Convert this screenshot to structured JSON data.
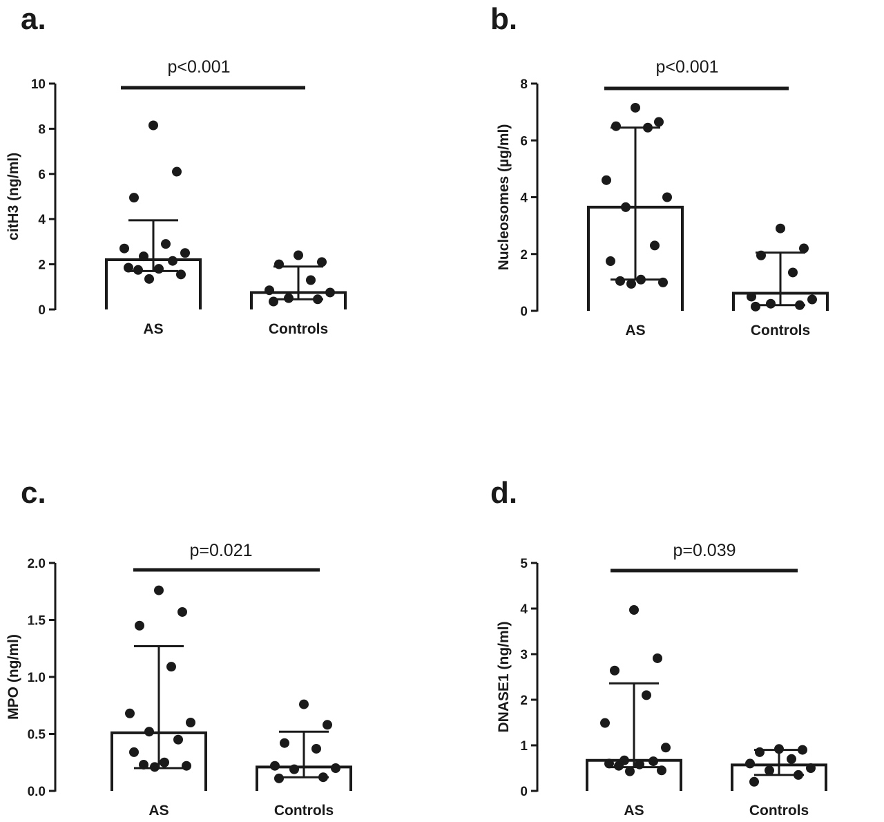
{
  "chart_data": [
    {
      "type": "bar",
      "panel": "a.",
      "title": "",
      "xlabel": "",
      "ylabel": "citH3 (ng/ml)",
      "categories": [
        "AS",
        "Controls"
      ],
      "ylim": [
        0,
        10
      ],
      "yticks": [
        0,
        2,
        4,
        6,
        8,
        10
      ],
      "ytick_labels": [
        "0",
        "2",
        "4",
        "6",
        "8",
        "10"
      ],
      "bar_values": [
        2.2,
        0.75
      ],
      "error_low": [
        1.7,
        0.45
      ],
      "error_high": [
        3.95,
        1.9
      ],
      "points": [
        [
          8.15,
          6.1,
          4.95,
          2.9,
          2.7,
          2.5,
          2.35,
          2.15,
          1.85,
          1.8,
          1.75,
          1.55,
          1.35
        ],
        [
          2.4,
          2.1,
          2.0,
          1.3,
          0.85,
          0.75,
          0.5,
          0.45,
          0.35
        ]
      ],
      "annotation": "p<0.001"
    },
    {
      "type": "bar",
      "panel": "b.",
      "title": "",
      "xlabel": "",
      "ylabel": "Nucleosomes (µg/ml)",
      "categories": [
        "AS",
        "Controls"
      ],
      "ylim": [
        0,
        8
      ],
      "yticks": [
        0,
        2,
        4,
        6,
        8
      ],
      "ytick_labels": [
        "0",
        "2",
        "4",
        "6",
        "8"
      ],
      "bar_values": [
        3.65,
        0.62
      ],
      "error_low": [
        1.1,
        0.2
      ],
      "error_high": [
        6.45,
        2.05
      ],
      "points": [
        [
          7.15,
          6.65,
          6.5,
          6.45,
          4.6,
          4.0,
          3.65,
          2.3,
          1.75,
          1.1,
          1.05,
          1.0,
          0.95
        ],
        [
          2.9,
          2.2,
          1.95,
          1.35,
          0.5,
          0.4,
          0.25,
          0.2,
          0.15
        ]
      ],
      "annotation": "p<0.001"
    },
    {
      "type": "bar",
      "panel": "c.",
      "title": "",
      "xlabel": "",
      "ylabel": "MPO (ng/ml)",
      "categories": [
        "AS",
        "Controls"
      ],
      "ylim": [
        0,
        2.0
      ],
      "yticks": [
        0,
        0.5,
        1.0,
        1.5,
        2.0
      ],
      "ytick_labels": [
        "0.0",
        "0.5",
        "1.0",
        "1.5",
        "2.0"
      ],
      "bar_values": [
        0.51,
        0.21
      ],
      "error_low": [
        0.2,
        0.12
      ],
      "error_high": [
        1.27,
        0.52
      ],
      "points": [
        [
          1.76,
          1.57,
          1.45,
          1.09,
          0.68,
          0.6,
          0.52,
          0.45,
          0.34,
          0.25,
          0.23,
          0.22,
          0.21
        ],
        [
          0.76,
          0.58,
          0.42,
          0.37,
          0.22,
          0.2,
          0.19,
          0.12,
          0.11
        ]
      ],
      "annotation": "p=0.021"
    },
    {
      "type": "bar",
      "panel": "d.",
      "title": "",
      "xlabel": "",
      "ylabel": "DNASE1 (ng/ml)",
      "categories": [
        "AS",
        "Controls"
      ],
      "ylim": [
        0,
        5
      ],
      "yticks": [
        0,
        1,
        2,
        3,
        4,
        5
      ],
      "ytick_labels": [
        "0",
        "1",
        "2",
        "3",
        "4",
        "5"
      ],
      "bar_values": [
        0.67,
        0.57
      ],
      "error_low": [
        0.52,
        0.35
      ],
      "error_high": [
        2.36,
        0.9
      ],
      "points": [
        [
          3.97,
          2.91,
          2.64,
          2.1,
          1.49,
          0.95,
          0.67,
          0.65,
          0.6,
          0.58,
          0.55,
          0.45,
          0.43
        ],
        [
          0.92,
          0.9,
          0.85,
          0.7,
          0.6,
          0.5,
          0.45,
          0.35,
          0.2
        ]
      ],
      "annotation": "p=0.039"
    }
  ]
}
